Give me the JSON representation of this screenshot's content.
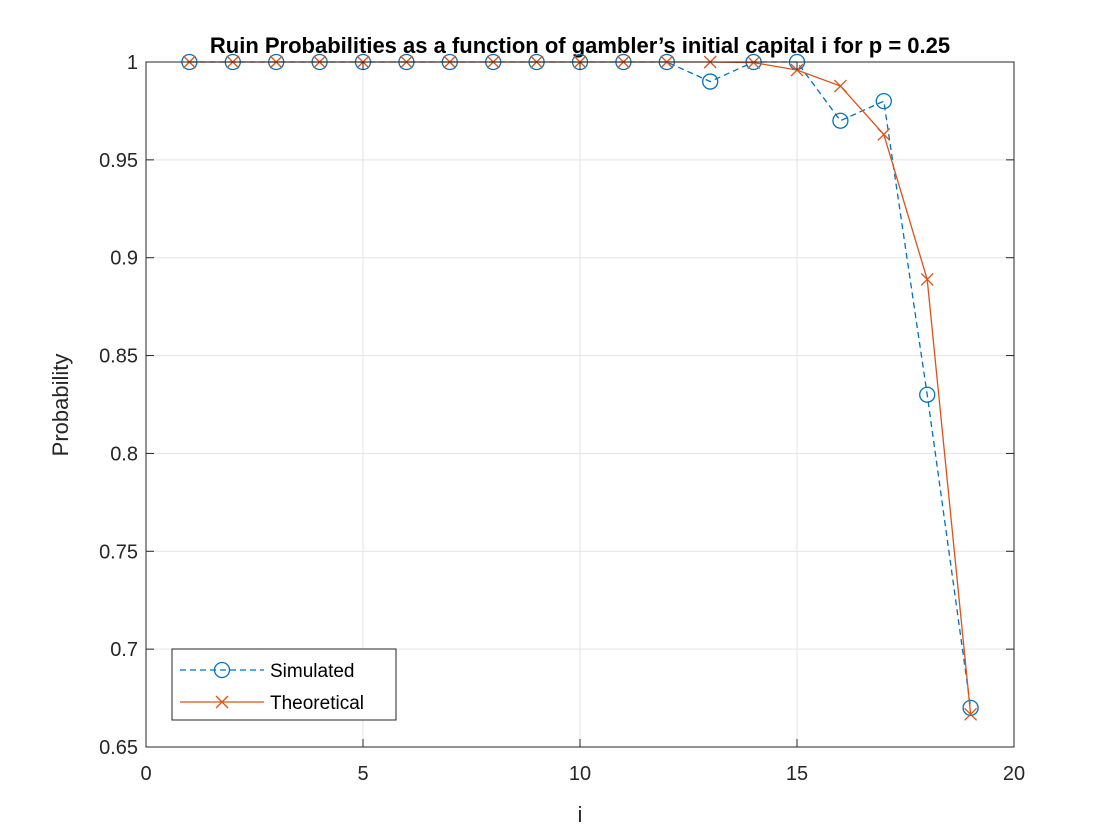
{
  "chart_data": {
    "type": "line",
    "title": "Ruin Probabilities as a function of gambler’s initial capital i for p = 0.25",
    "xlabel": "i",
    "ylabel": "Probability",
    "xlim": [
      0,
      20
    ],
    "ylim": [
      0.65,
      1
    ],
    "xticks": [
      0,
      5,
      10,
      15,
      20
    ],
    "yticks": [
      0.65,
      0.7,
      0.75,
      0.8,
      0.85,
      0.9,
      0.95,
      1
    ],
    "ytick_labels": [
      "0.65",
      "0.7",
      "0.75",
      "0.8",
      "0.85",
      "0.9",
      "0.95",
      "1"
    ],
    "grid": true,
    "legend_position": "bottom-left",
    "x": [
      1,
      2,
      3,
      4,
      5,
      6,
      7,
      8,
      9,
      10,
      11,
      12,
      13,
      14,
      15,
      16,
      17,
      18,
      19
    ],
    "series": [
      {
        "name": "Simulated",
        "color": "#0072BD",
        "line_style": "dashed",
        "marker": "circle",
        "values": [
          1,
          1,
          1,
          1,
          1,
          1,
          1,
          1,
          1,
          1,
          1,
          1,
          0.99,
          1,
          1,
          0.97,
          0.98,
          0.83,
          0.67
        ]
      },
      {
        "name": "Theoretical",
        "color": "#D95319",
        "line_style": "solid",
        "marker": "cross",
        "values": [
          1,
          1,
          1,
          1,
          1,
          1,
          1,
          1,
          1,
          1,
          1,
          1,
          1,
          0.9997,
          0.9959,
          0.9877,
          0.963,
          0.8889,
          0.6667
        ]
      }
    ]
  }
}
